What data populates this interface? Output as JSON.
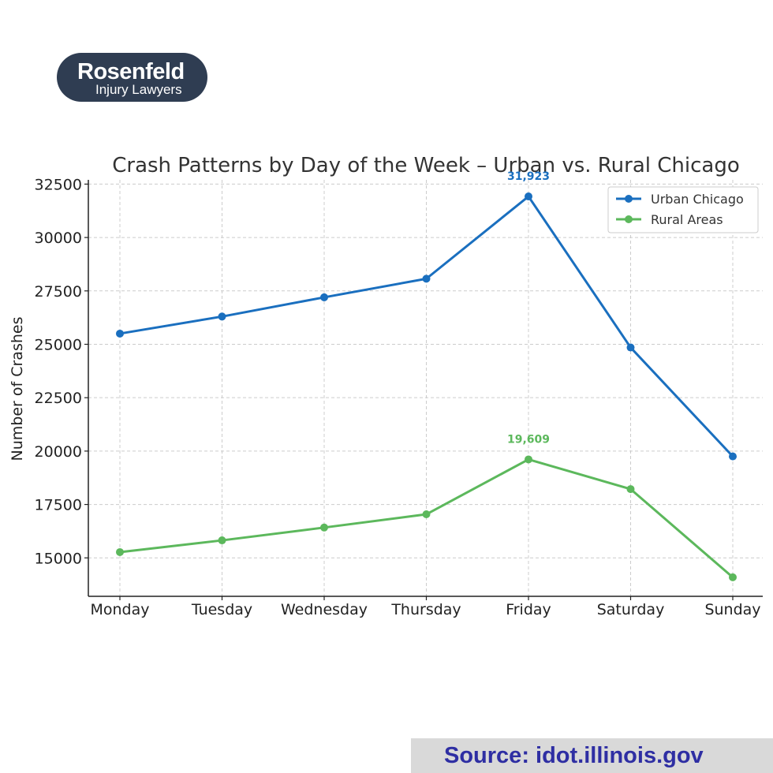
{
  "logo": {
    "main": "Rosenfeld",
    "sub": "Injury Lawyers"
  },
  "source": "Source: idot.illinois.gov",
  "chart_data": {
    "type": "line",
    "title": "Crash Patterns by Day of the Week – Urban vs. Rural Chicago",
    "xlabel": "",
    "ylabel": "Number of Crashes",
    "categories": [
      "Monday",
      "Tuesday",
      "Wednesday",
      "Thursday",
      "Friday",
      "Saturday",
      "Sunday"
    ],
    "yticks": [
      15000,
      17500,
      20000,
      22500,
      25000,
      27500,
      30000,
      32500
    ],
    "ylim": [
      13200,
      32700
    ],
    "grid": true,
    "legend": "top-right",
    "series": [
      {
        "name": "Urban Chicago",
        "color": "#1a6fbf",
        "values": [
          25500,
          26300,
          27200,
          28070,
          31923,
          24850,
          19750
        ]
      },
      {
        "name": "Rural Areas",
        "color": "#5cb85c",
        "values": [
          15270,
          15820,
          16420,
          17040,
          19609,
          18220,
          14090
        ]
      }
    ],
    "annotations": [
      {
        "series": 0,
        "index": 4,
        "text": "31,923",
        "color": "#1a6fbf"
      },
      {
        "series": 1,
        "index": 4,
        "text": "19,609",
        "color": "#5cb85c"
      }
    ]
  }
}
